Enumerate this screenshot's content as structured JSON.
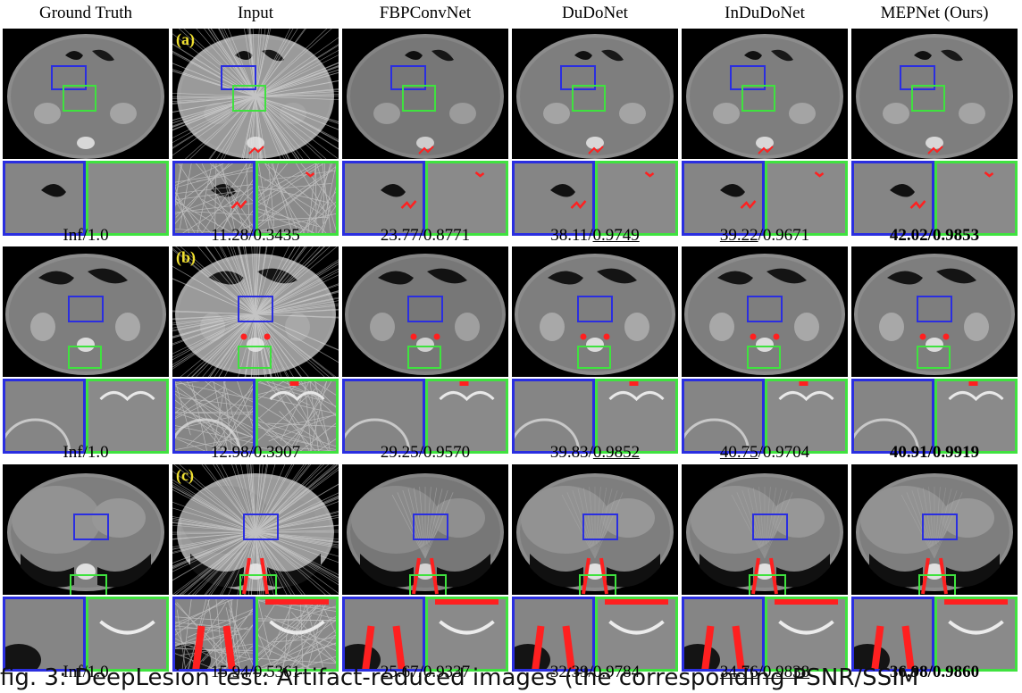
{
  "columns": [
    "Ground Truth",
    "Input",
    "FBPConvNet",
    "DuDoNet",
    "InDuDoNet",
    "MEPNet (Ours)"
  ],
  "rows": [
    {
      "label": "(a)",
      "metrics": [
        {
          "psnr": "Inf",
          "ssim": "1.0",
          "psnr_style": "",
          "ssim_style": ""
        },
        {
          "psnr": "11.28",
          "ssim": "0.3435",
          "psnr_style": "",
          "ssim_style": ""
        },
        {
          "psnr": "23.77",
          "ssim": "0.8771",
          "psnr_style": "",
          "ssim_style": ""
        },
        {
          "psnr": "38.11",
          "ssim": "0.9749",
          "psnr_style": "",
          "ssim_style": "underline"
        },
        {
          "psnr": "39.22",
          "ssim": "0.9671",
          "psnr_style": "underline",
          "ssim_style": ""
        },
        {
          "psnr": "42.02",
          "ssim": "0.9853",
          "psnr_style": "bold",
          "ssim_style": "bold"
        }
      ]
    },
    {
      "label": "(b)",
      "metrics": [
        {
          "psnr": "Inf",
          "ssim": "1.0",
          "psnr_style": "",
          "ssim_style": ""
        },
        {
          "psnr": "12.98",
          "ssim": "0.3907",
          "psnr_style": "",
          "ssim_style": ""
        },
        {
          "psnr": "29.25",
          "ssim": "0.9570",
          "psnr_style": "",
          "ssim_style": ""
        },
        {
          "psnr": "39.83",
          "ssim": "0.9852",
          "psnr_style": "",
          "ssim_style": "underline"
        },
        {
          "psnr": "40.75",
          "ssim": "0.9704",
          "psnr_style": "underline",
          "ssim_style": ""
        },
        {
          "psnr": "40.91",
          "ssim": "0.9919",
          "psnr_style": "bold",
          "ssim_style": "bold"
        }
      ]
    },
    {
      "label": "(c)",
      "metrics": [
        {
          "psnr": "Inf",
          "ssim": "1.0",
          "psnr_style": "",
          "ssim_style": ""
        },
        {
          "psnr": "15.94",
          "ssim": "0.5361",
          "psnr_style": "",
          "ssim_style": ""
        },
        {
          "psnr": "25.67",
          "ssim": "0.9337",
          "psnr_style": "",
          "ssim_style": ""
        },
        {
          "psnr": "32.39",
          "ssim": "0.9784",
          "psnr_style": "",
          "ssim_style": ""
        },
        {
          "psnr": "34.76",
          "ssim": "0.9838",
          "psnr_style": "underline",
          "ssim_style": "underline"
        },
        {
          "psnr": "36.98",
          "ssim": "0.9860",
          "psnr_style": "bold",
          "ssim_style": "bold"
        }
      ]
    }
  ],
  "caption": "fig. 3: DeepLesion test: Artifact-reduced images (the corresponding PSNR/SSIM",
  "colors": {
    "roi_blue": "#2a2ee0",
    "roi_green": "#3fe23f",
    "metal": "#ff2020",
    "label_yellow": "#f0e030"
  }
}
